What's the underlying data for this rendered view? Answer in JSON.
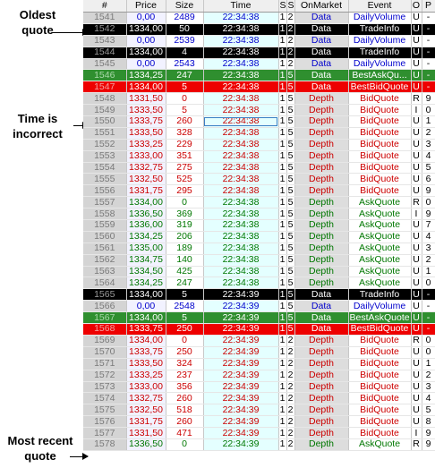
{
  "annotations": {
    "oldest": "Oldest\nquote",
    "time_incorrect": "Time is\nincorrect",
    "most_recent": "Most recent\nquote"
  },
  "columns": [
    "#",
    "Price",
    "Size",
    "Time",
    "S",
    "S",
    "OnMarket",
    "Event",
    "O",
    "P"
  ],
  "colors": {
    "data_text": "#0000cc",
    "ask_text": "#007700",
    "bid_text": "#cc0000",
    "highlight_black": "#000000",
    "highlight_green": "#2f8f2f",
    "highlight_red": "#ee0000"
  },
  "rows": [
    {
      "num": "1541",
      "price": "0,00",
      "size": "2489",
      "time": "22:34:38",
      "s1": "1",
      "s2": "2",
      "market": "Data",
      "event": "DailyVolume",
      "o": "U",
      "p": "-",
      "kind": "data",
      "hl": ""
    },
    {
      "num": "1542",
      "price": "1334,00",
      "size": "50",
      "time": "22:34:38",
      "s1": "1",
      "s2": "2",
      "market": "Data",
      "event": "TradeInfo",
      "o": "U",
      "p": "-",
      "kind": "data",
      "hl": "black"
    },
    {
      "num": "1543",
      "price": "0,00",
      "size": "2539",
      "time": "22:34:38",
      "s1": "1",
      "s2": "2",
      "market": "Data",
      "event": "DailyVolume",
      "o": "U",
      "p": "-",
      "kind": "data",
      "hl": ""
    },
    {
      "num": "1544",
      "price": "1334,00",
      "size": "4",
      "time": "22:34:38",
      "s1": "1",
      "s2": "2",
      "market": "Data",
      "event": "TradeInfo",
      "o": "U",
      "p": "-",
      "kind": "data",
      "hl": "black"
    },
    {
      "num": "1545",
      "price": "0,00",
      "size": "2543",
      "time": "22:34:38",
      "s1": "1",
      "s2": "2",
      "market": "Data",
      "event": "DailyVolume",
      "o": "U",
      "p": "-",
      "kind": "data",
      "hl": ""
    },
    {
      "num": "1546",
      "price": "1334,25",
      "size": "247",
      "time": "22:34:38",
      "s1": "1",
      "s2": "5",
      "market": "Data",
      "event": "BestAskQu...",
      "o": "U",
      "p": "-",
      "kind": "data",
      "hl": "green"
    },
    {
      "num": "1547",
      "price": "1334,00",
      "size": "5",
      "time": "22:34:38",
      "s1": "1",
      "s2": "5",
      "market": "Data",
      "event": "BestBidQuote",
      "o": "U",
      "p": "-",
      "kind": "data",
      "hl": "red"
    },
    {
      "num": "1548",
      "price": "1331,50",
      "size": "0",
      "time": "22:34:38",
      "s1": "1",
      "s2": "5",
      "market": "Depth",
      "event": "BidQuote",
      "o": "R",
      "p": "9",
      "kind": "bid",
      "hl": ""
    },
    {
      "num": "1549",
      "price": "1333,50",
      "size": "5",
      "time": "22:34:38",
      "s1": "1",
      "s2": "5",
      "market": "Depth",
      "event": "BidQuote",
      "o": "I",
      "p": "0",
      "kind": "bid",
      "hl": ""
    },
    {
      "num": "1550",
      "price": "1333,75",
      "size": "260",
      "time": "22:34:38",
      "s1": "1",
      "s2": "5",
      "market": "Depth",
      "event": "BidQuote",
      "o": "U",
      "p": "1",
      "kind": "bid",
      "hl": "",
      "sel": true
    },
    {
      "num": "1551",
      "price": "1333,50",
      "size": "328",
      "time": "22:34:38",
      "s1": "1",
      "s2": "5",
      "market": "Depth",
      "event": "BidQuote",
      "o": "U",
      "p": "2",
      "kind": "bid",
      "hl": ""
    },
    {
      "num": "1552",
      "price": "1333,25",
      "size": "229",
      "time": "22:34:38",
      "s1": "1",
      "s2": "5",
      "market": "Depth",
      "event": "BidQuote",
      "o": "U",
      "p": "3",
      "kind": "bid",
      "hl": ""
    },
    {
      "num": "1553",
      "price": "1333,00",
      "size": "351",
      "time": "22:34:38",
      "s1": "1",
      "s2": "5",
      "market": "Depth",
      "event": "BidQuote",
      "o": "U",
      "p": "4",
      "kind": "bid",
      "hl": ""
    },
    {
      "num": "1554",
      "price": "1332,75",
      "size": "275",
      "time": "22:34:38",
      "s1": "1",
      "s2": "5",
      "market": "Depth",
      "event": "BidQuote",
      "o": "U",
      "p": "5",
      "kind": "bid",
      "hl": ""
    },
    {
      "num": "1555",
      "price": "1332,50",
      "size": "525",
      "time": "22:34:38",
      "s1": "1",
      "s2": "5",
      "market": "Depth",
      "event": "BidQuote",
      "o": "U",
      "p": "6",
      "kind": "bid",
      "hl": ""
    },
    {
      "num": "1556",
      "price": "1331,75",
      "size": "295",
      "time": "22:34:38",
      "s1": "1",
      "s2": "5",
      "market": "Depth",
      "event": "BidQuote",
      "o": "U",
      "p": "9",
      "kind": "bid",
      "hl": ""
    },
    {
      "num": "1557",
      "price": "1334,00",
      "size": "0",
      "time": "22:34:38",
      "s1": "1",
      "s2": "5",
      "market": "Depth",
      "event": "AskQuote",
      "o": "R",
      "p": "0",
      "kind": "ask",
      "hl": ""
    },
    {
      "num": "1558",
      "price": "1336,50",
      "size": "369",
      "time": "22:34:38",
      "s1": "1",
      "s2": "5",
      "market": "Depth",
      "event": "AskQuote",
      "o": "I",
      "p": "9",
      "kind": "ask",
      "hl": ""
    },
    {
      "num": "1559",
      "price": "1336,00",
      "size": "319",
      "time": "22:34:38",
      "s1": "1",
      "s2": "5",
      "market": "Depth",
      "event": "AskQuote",
      "o": "U",
      "p": "7",
      "kind": "ask",
      "hl": ""
    },
    {
      "num": "1560",
      "price": "1334,25",
      "size": "206",
      "time": "22:34:38",
      "s1": "1",
      "s2": "5",
      "market": "Depth",
      "event": "AskQuote",
      "o": "U",
      "p": "4",
      "kind": "ask",
      "hl": ""
    },
    {
      "num": "1561",
      "price": "1335,00",
      "size": "189",
      "time": "22:34:38",
      "s1": "1",
      "s2": "5",
      "market": "Depth",
      "event": "AskQuote",
      "o": "U",
      "p": "3",
      "kind": "ask",
      "hl": ""
    },
    {
      "num": "1562",
      "price": "1334,75",
      "size": "140",
      "time": "22:34:38",
      "s1": "1",
      "s2": "5",
      "market": "Depth",
      "event": "AskQuote",
      "o": "U",
      "p": "2",
      "kind": "ask",
      "hl": ""
    },
    {
      "num": "1563",
      "price": "1334,50",
      "size": "425",
      "time": "22:34:38",
      "s1": "1",
      "s2": "5",
      "market": "Depth",
      "event": "AskQuote",
      "o": "U",
      "p": "1",
      "kind": "ask",
      "hl": ""
    },
    {
      "num": "1564",
      "price": "1334,25",
      "size": "247",
      "time": "22:34:38",
      "s1": "1",
      "s2": "5",
      "market": "Depth",
      "event": "AskQuote",
      "o": "U",
      "p": "0",
      "kind": "ask",
      "hl": ""
    },
    {
      "num": "1565",
      "price": "1334,00",
      "size": "5",
      "time": "22:34:39",
      "s1": "1",
      "s2": "5",
      "market": "Data",
      "event": "TradeInfo",
      "o": "U",
      "p": "-",
      "kind": "data",
      "hl": "black"
    },
    {
      "num": "1566",
      "price": "0,00",
      "size": "2548",
      "time": "22:34:39",
      "s1": "1",
      "s2": "5",
      "market": "Data",
      "event": "DailyVolume",
      "o": "U",
      "p": "-",
      "kind": "data",
      "hl": ""
    },
    {
      "num": "1567",
      "price": "1334,00",
      "size": "5",
      "time": "22:34:39",
      "s1": "1",
      "s2": "5",
      "market": "Data",
      "event": "BestAskQuote",
      "o": "U",
      "p": "-",
      "kind": "data",
      "hl": "green"
    },
    {
      "num": "1568",
      "price": "1333,75",
      "size": "250",
      "time": "22:34:39",
      "s1": "1",
      "s2": "5",
      "market": "Data",
      "event": "BestBidQuote",
      "o": "U",
      "p": "-",
      "kind": "data",
      "hl": "red"
    },
    {
      "num": "1569",
      "price": "1334,00",
      "size": "0",
      "time": "22:34:39",
      "s1": "1",
      "s2": "2",
      "market": "Depth",
      "event": "BidQuote",
      "o": "R",
      "p": "0",
      "kind": "bid",
      "hl": ""
    },
    {
      "num": "1570",
      "price": "1333,75",
      "size": "250",
      "time": "22:34:39",
      "s1": "1",
      "s2": "2",
      "market": "Depth",
      "event": "BidQuote",
      "o": "U",
      "p": "0",
      "kind": "bid",
      "hl": ""
    },
    {
      "num": "1571",
      "price": "1333,50",
      "size": "324",
      "time": "22:34:39",
      "s1": "1",
      "s2": "2",
      "market": "Depth",
      "event": "BidQuote",
      "o": "U",
      "p": "1",
      "kind": "bid",
      "hl": ""
    },
    {
      "num": "1572",
      "price": "1333,25",
      "size": "237",
      "time": "22:34:39",
      "s1": "1",
      "s2": "2",
      "market": "Depth",
      "event": "BidQuote",
      "o": "U",
      "p": "2",
      "kind": "bid",
      "hl": ""
    },
    {
      "num": "1573",
      "price": "1333,00",
      "size": "356",
      "time": "22:34:39",
      "s1": "1",
      "s2": "2",
      "market": "Depth",
      "event": "BidQuote",
      "o": "U",
      "p": "3",
      "kind": "bid",
      "hl": ""
    },
    {
      "num": "1574",
      "price": "1332,75",
      "size": "260",
      "time": "22:34:39",
      "s1": "1",
      "s2": "2",
      "market": "Depth",
      "event": "BidQuote",
      "o": "U",
      "p": "4",
      "kind": "bid",
      "hl": ""
    },
    {
      "num": "1575",
      "price": "1332,50",
      "size": "518",
      "time": "22:34:39",
      "s1": "1",
      "s2": "2",
      "market": "Depth",
      "event": "BidQuote",
      "o": "U",
      "p": "5",
      "kind": "bid",
      "hl": ""
    },
    {
      "num": "1576",
      "price": "1331,75",
      "size": "260",
      "time": "22:34:39",
      "s1": "1",
      "s2": "2",
      "market": "Depth",
      "event": "BidQuote",
      "o": "U",
      "p": "8",
      "kind": "bid",
      "hl": ""
    },
    {
      "num": "1577",
      "price": "1331,50",
      "size": "471",
      "time": "22:34:39",
      "s1": "1",
      "s2": "2",
      "market": "Depth",
      "event": "BidQuote",
      "o": "I",
      "p": "9",
      "kind": "bid",
      "hl": ""
    },
    {
      "num": "1578",
      "price": "1336,50",
      "size": "0",
      "time": "22:34:39",
      "s1": "1",
      "s2": "2",
      "market": "Depth",
      "event": "AskQuote",
      "o": "R",
      "p": "9",
      "kind": "ask",
      "hl": ""
    }
  ]
}
